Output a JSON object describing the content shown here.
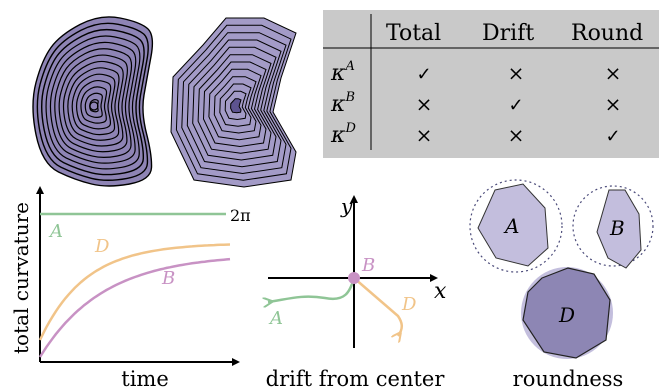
{
  "colors": {
    "contour_fill": "#8e84b5",
    "contour_fill_dark": "#5d5390",
    "table_bg": "#c9c9c9",
    "green": "#8fc596",
    "orange": "#f1c489",
    "pink": "#c892c4",
    "lavender": "#c3bedd",
    "lavender_dark": "#8d86b4",
    "dotted_circle": "#4b4b7a",
    "axis": "#000000"
  },
  "table": {
    "columns": [
      "Total",
      "Drift",
      "Round"
    ],
    "rows": [
      {
        "label": "κ",
        "sup": "A",
        "cells": [
          "✓",
          "×",
          "×"
        ]
      },
      {
        "label": "κ",
        "sup": "B",
        "cells": [
          "×",
          "✓",
          "×"
        ]
      },
      {
        "label": "κ",
        "sup": "D",
        "cells": [
          "×",
          "×",
          "✓"
        ]
      }
    ]
  },
  "curvature_plot": {
    "ylabel": "total curvature",
    "xlabel": "time",
    "level_label": "2π",
    "series": [
      {
        "name": "A",
        "color": "green"
      },
      {
        "name": "D",
        "color": "orange"
      },
      {
        "name": "B",
        "color": "pink"
      }
    ]
  },
  "drift_plot": {
    "xlabel": "drift from center",
    "x_axis": "x",
    "y_axis": "y",
    "labels": {
      "A": "A",
      "B": "B",
      "D": "D"
    }
  },
  "roundness_plot": {
    "xlabel": "roundness",
    "shapes": [
      {
        "name": "A"
      },
      {
        "name": "B"
      },
      {
        "name": "D"
      }
    ]
  }
}
